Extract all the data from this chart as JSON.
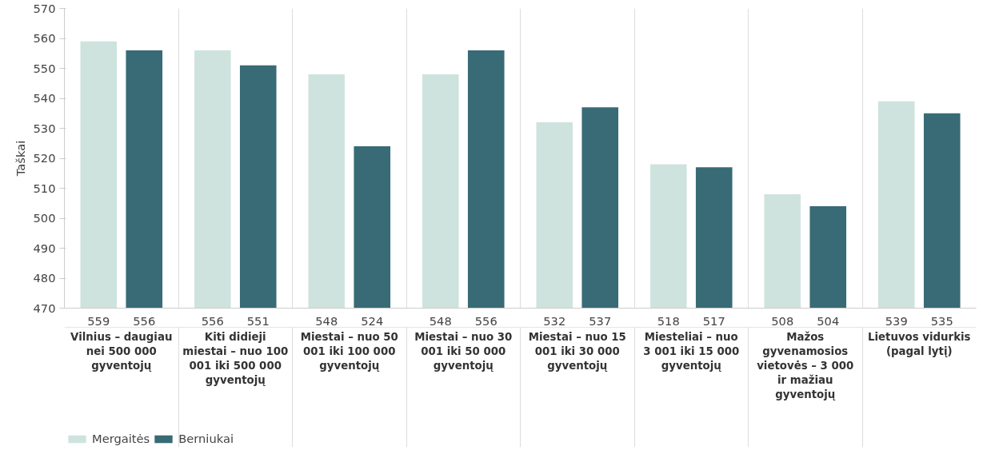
{
  "chart_data": {
    "type": "bar",
    "ylabel": "Taškai",
    "categories": [
      "Vilnius – daugiau nei 500 000 gyventojų",
      "Kiti didieji miestai – nuo 100 001 iki 500 000 gyventojų",
      "Miestai – nuo 50 001 iki 100 000 gyventojų",
      "Miestai – nuo 30 001 iki 50 000 gyventojų",
      "Miestai – nuo 15 001 iki 30 000 gyventojų",
      "Miesteliai – nuo 3 001 iki 15 000 gyventojų",
      "Mažos gyvenamosios vietovės – 3 000 ir mažiau gyventojų",
      "Lietuvos vidurkis (pagal lytį)"
    ],
    "series": [
      {
        "name": "Mergaitės",
        "color": "#cfe3de",
        "values": [
          559,
          556,
          548,
          548,
          532,
          518,
          508,
          539
        ]
      },
      {
        "name": "Berniukai",
        "color": "#386b75",
        "values": [
          556,
          551,
          524,
          556,
          537,
          517,
          504,
          535
        ]
      }
    ],
    "ylim": [
      470,
      570
    ],
    "yticks": [
      470,
      480,
      490,
      500,
      510,
      520,
      530,
      540,
      550,
      560,
      570
    ],
    "data_labels": true,
    "grid": "x",
    "legend": "bottom left"
  }
}
